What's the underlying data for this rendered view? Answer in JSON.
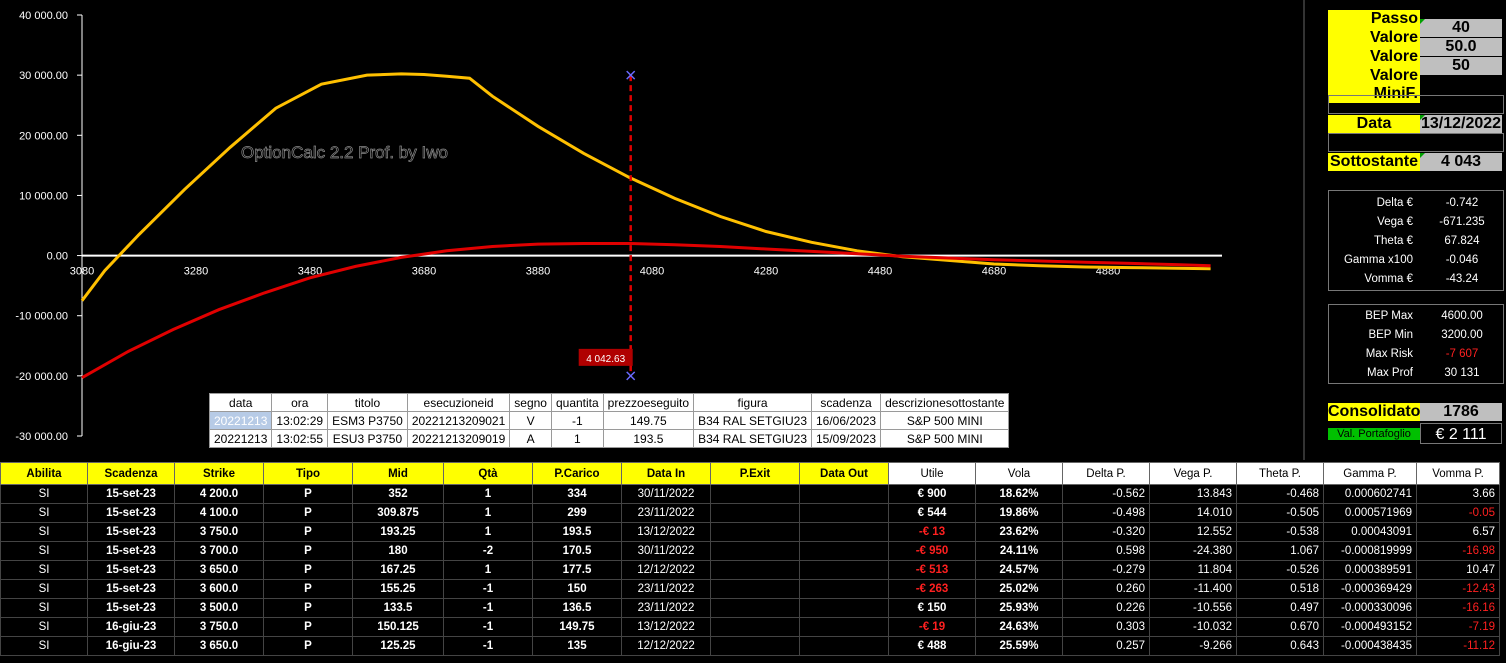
{
  "chart_data": {
    "type": "line",
    "title": "",
    "watermark": "OptionCalc 2.2 Prof. by Iwo",
    "xlabel": "",
    "ylabel": "",
    "xlim": [
      3080,
      5080
    ],
    "ylim": [
      -30000,
      40000
    ],
    "x_ticks": [
      "3080",
      "3280",
      "3480",
      "3680",
      "3880",
      "4080",
      "4280",
      "4480",
      "4680",
      "4880"
    ],
    "y_ticks": [
      "40 000.00",
      "30 000.00",
      "20 000.00",
      "10 000.00",
      "0.00",
      "-10 000.00",
      "-20 000.00",
      "-30 000.00"
    ],
    "current_price": 4042.63,
    "current_price_label": "4 042.63",
    "series": [
      {
        "color": "#ffc000",
        "x": [
          3080,
          3120,
          3180,
          3260,
          3340,
          3420,
          3500,
          3580,
          3640,
          3680,
          3720,
          3760,
          3800,
          3880,
          3960,
          4040,
          4120,
          4200,
          4280,
          4360,
          4440,
          4520,
          4600,
          4680,
          4760,
          4840,
          4920,
          5000,
          5060
        ],
        "y": [
          -7500,
          -2500,
          3500,
          11000,
          18000,
          24500,
          28500,
          30000,
          30200,
          30100,
          29800,
          29500,
          26500,
          21500,
          17000,
          13000,
          9500,
          6500,
          4000,
          2200,
          800,
          -200,
          -800,
          -1400,
          -1700,
          -1900,
          -2000,
          -2100,
          -2200
        ]
      },
      {
        "color": "#e00000",
        "x": [
          3080,
          3160,
          3240,
          3320,
          3400,
          3480,
          3560,
          3640,
          3720,
          3800,
          3880,
          3960,
          4040,
          4120,
          4200,
          4280,
          4360,
          4440,
          4520,
          4600,
          4680,
          4760,
          4840,
          4920,
          5000,
          5060
        ],
        "y": [
          -20300,
          -16000,
          -12300,
          -9000,
          -6200,
          -3700,
          -1800,
          -300,
          800,
          1500,
          1900,
          2000,
          2000,
          1800,
          1500,
          1100,
          700,
          300,
          -100,
          -400,
          -700,
          -900,
          -1100,
          -1300,
          -1500,
          -1700
        ]
      }
    ]
  },
  "trades": {
    "headers": [
      "data",
      "ora",
      "titolo",
      "esecuzioneid",
      "segno",
      "quantita",
      "prezzoeseguito",
      "figura",
      "scadenza",
      "descrizionesottostante"
    ],
    "rows": [
      [
        "20221213",
        "13:02:29",
        "ESM3 P3750",
        "20221213209021",
        "V",
        "-1",
        "149.75",
        "B34 RAL SETGIU23",
        "16/06/2023",
        "S&P 500 MINI"
      ],
      [
        "20221213",
        "13:02:55",
        "ESU3 P3750",
        "20221213209019",
        "A",
        "1",
        "193.5",
        "B34 RAL SETGIU23",
        "15/09/2023",
        "S&P 500 MINI"
      ]
    ]
  },
  "panel": {
    "passo_label": "Passo Grafico",
    "passo": "40",
    "opzioni_label": "Valore Opzioni",
    "opzioni": "50.0",
    "future_label": "Valore Future",
    "future": "50",
    "minif_label": "Valore MiniF.",
    "minif": "",
    "data_label": "Data",
    "data": "13/12/2022",
    "sott_label": "Sottostante",
    "sott": "4 043",
    "greeks": [
      [
        "Delta €",
        "-0.742"
      ],
      [
        "Vega €",
        "-671.235"
      ],
      [
        "Theta €",
        "67.824"
      ],
      [
        "Gamma x100",
        "-0.046"
      ],
      [
        "Vomma €",
        "-43.24"
      ]
    ],
    "bep": [
      [
        "BEP Max",
        "4600.00"
      ],
      [
        "BEP Min",
        "3200.00"
      ],
      [
        "Max Risk",
        "-7 607"
      ],
      [
        "Max Prof",
        "30 131"
      ]
    ],
    "cons_label": "Consolidato",
    "cons": "1786",
    "port_label": "Val. Portafoglio",
    "port": "€ 2 111"
  },
  "grid": {
    "headers": [
      "Abilita",
      "Scadenza",
      "Strike",
      "Tipo",
      "Mid",
      "Qtà",
      "P.Carico",
      "Data In",
      "P.Exit",
      "Data Out",
      "Utile",
      "Vola",
      "Delta P.",
      "Vega P.",
      "Theta P.",
      "Gamma P.",
      "Vomma P."
    ],
    "rows": [
      [
        "SI",
        "15-set-23",
        "4 200.0",
        "P",
        "352",
        "1",
        "334",
        "30/11/2022",
        "",
        "",
        "€ 900",
        "18.62%",
        "-0.562",
        "13.843",
        "-0.468",
        "0.000602741",
        "3.66"
      ],
      [
        "SI",
        "15-set-23",
        "4 100.0",
        "P",
        "309.875",
        "1",
        "299",
        "23/11/2022",
        "",
        "",
        "€ 544",
        "19.86%",
        "-0.498",
        "14.010",
        "-0.505",
        "0.000571969",
        "-0.05"
      ],
      [
        "SI",
        "15-set-23",
        "3 750.0",
        "P",
        "193.25",
        "1",
        "193.5",
        "13/12/2022",
        "",
        "",
        "-€ 13",
        "23.62%",
        "-0.320",
        "12.552",
        "-0.538",
        "0.00043091",
        "6.57"
      ],
      [
        "SI",
        "15-set-23",
        "3 700.0",
        "P",
        "180",
        "-2",
        "170.5",
        "30/11/2022",
        "",
        "",
        "-€ 950",
        "24.11%",
        "0.598",
        "-24.380",
        "1.067",
        "-0.000819999",
        "-16.98"
      ],
      [
        "SI",
        "15-set-23",
        "3 650.0",
        "P",
        "167.25",
        "1",
        "177.5",
        "12/12/2022",
        "",
        "",
        "-€ 513",
        "24.57%",
        "-0.279",
        "11.804",
        "-0.526",
        "0.000389591",
        "10.47"
      ],
      [
        "SI",
        "15-set-23",
        "3 600.0",
        "P",
        "155.25",
        "-1",
        "150",
        "23/11/2022",
        "",
        "",
        "-€ 263",
        "25.02%",
        "0.260",
        "-11.400",
        "0.518",
        "-0.000369429",
        "-12.43"
      ],
      [
        "SI",
        "15-set-23",
        "3 500.0",
        "P",
        "133.5",
        "-1",
        "136.5",
        "23/11/2022",
        "",
        "",
        "€ 150",
        "25.93%",
        "0.226",
        "-10.556",
        "0.497",
        "-0.000330096",
        "-16.16"
      ],
      [
        "SI",
        "16-giu-23",
        "3 750.0",
        "P",
        "150.125",
        "-1",
        "149.75",
        "13/12/2022",
        "",
        "",
        "-€ 19",
        "24.63%",
        "0.303",
        "-10.032",
        "0.670",
        "-0.000493152",
        "-7.19"
      ],
      [
        "SI",
        "16-giu-23",
        "3 650.0",
        "P",
        "125.25",
        "-1",
        "135",
        "12/12/2022",
        "",
        "",
        "€ 488",
        "25.59%",
        "0.257",
        "-9.266",
        "0.643",
        "-0.000438435",
        "-11.12"
      ]
    ]
  }
}
